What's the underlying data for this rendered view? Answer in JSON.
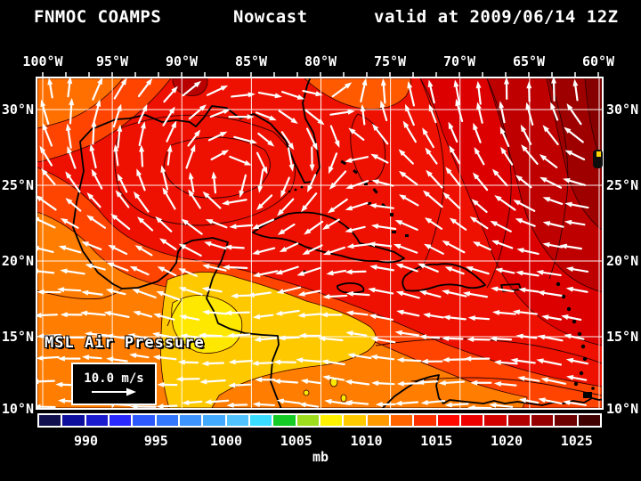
{
  "header": {
    "model": "FNMOC COAMPS",
    "product": "Nowcast",
    "valid_text": "valid at 2009/06/14 12Z"
  },
  "axes": {
    "lon_labels": [
      "100°W",
      "95°W",
      "90°W",
      "85°W",
      "80°W",
      "75°W",
      "70°W",
      "65°W",
      "60°W"
    ],
    "lat_labels": [
      "30°N",
      "25°N",
      "20°N",
      "15°N",
      "10°N"
    ]
  },
  "overlay": {
    "field_label": "MSL Air Pressure",
    "wind_scale_label": "10.0 m/s"
  },
  "colorbar": {
    "unit_label": "mb",
    "tick_labels": [
      "990",
      "995",
      "1000",
      "1005",
      "1010",
      "1015",
      "1020",
      "1025"
    ],
    "cell_colors": [
      "#10104e",
      "#0d0d9e",
      "#1a1acf",
      "#2929ff",
      "#2e59ff",
      "#3377ff",
      "#3d94ff",
      "#42aaff",
      "#4fc2ff",
      "#39ddff",
      "#15cc26",
      "#9edc1e",
      "#fff200",
      "#ffcb00",
      "#ff9a00",
      "#ff6400",
      "#ff3000",
      "#ff0800",
      "#ee0000",
      "#d40000",
      "#b20000",
      "#960000",
      "#6e0000",
      "#400000"
    ]
  },
  "map_colors": {
    "base_red": "#ee1000",
    "orange_red": "#ff4400",
    "orange": "#ff7d00",
    "corner_orange": "#ff7000",
    "trough_orange": "#ff5a00",
    "gold": "#ffc900",
    "yellow": "#ffe800",
    "dark_red_1": "#dc0000",
    "dark_red_2": "#be0000",
    "dark_red_3": "#9e0000",
    "dark_red_4": "#860000",
    "low_blob": "#b80000",
    "gridline": "#ffffff",
    "wind_arrow": "#ffffff",
    "coastline": "#000000",
    "isobar": "#300000"
  }
}
